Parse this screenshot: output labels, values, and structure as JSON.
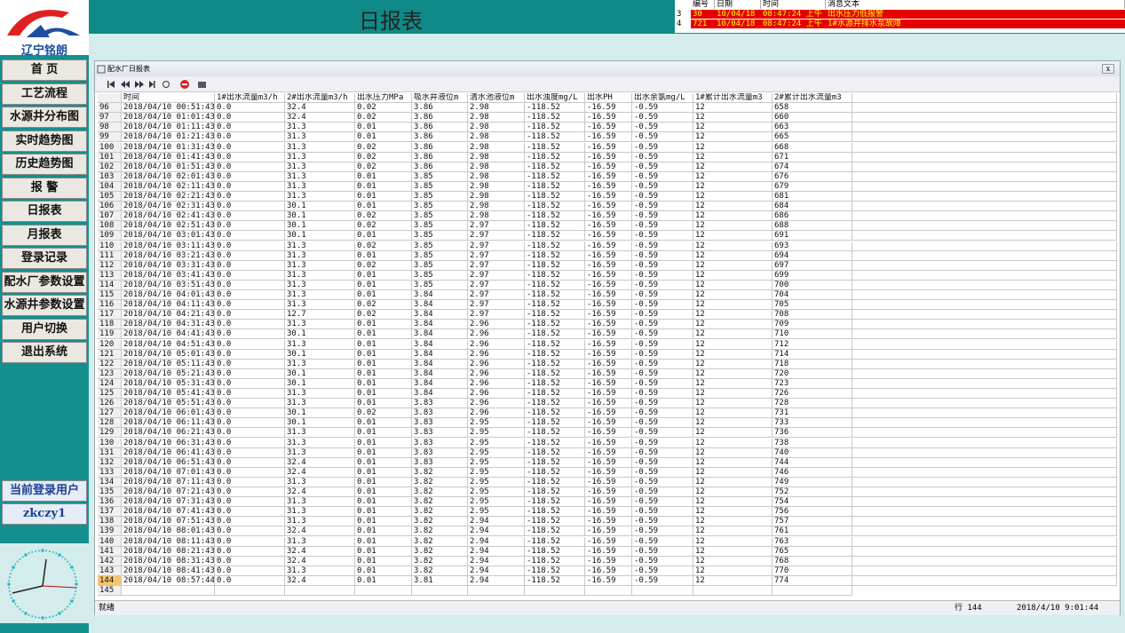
{
  "header": {
    "logo": "辽宁铭朗",
    "title": "日报表"
  },
  "alarms": {
    "columns": [
      "编号",
      "日期",
      "时间",
      "消息文本"
    ],
    "rows": [
      [
        "3",
        "30",
        "10/04/18",
        "08:47:24 上午",
        "出水压力低报警"
      ],
      [
        "4",
        "721",
        "10/04/18",
        "08:47:24 上午",
        "1#水源井排水泵故障"
      ]
    ]
  },
  "menu": [
    "首 页",
    "工艺流程",
    "水源井分布图",
    "实时趋势图",
    "历史趋势图",
    "报 警",
    "日报表",
    "月报表",
    "登录记录",
    "配水厂参数设置",
    "水源井参数设置",
    "用户切换",
    "退出系统"
  ],
  "user": {
    "label": "当前登录用户",
    "name": "zkczy1"
  },
  "window": {
    "title": "配水厂日报表",
    "table": {
      "columns": [
        "时间",
        "1#出水流量m3/h",
        "2#出水流量m3/h",
        "出水压力MPa",
        "吸水井液位m",
        "清水池液位m",
        "出水浊度mg/L",
        "出水PH",
        "出水余氯mg/L",
        "1#累计出水流量m3",
        "2#累计出水流量m3"
      ],
      "rows": [
        [
          "96",
          "2018/04/10 00:51:43",
          "0.0",
          "32.4",
          "0.02",
          "3.86",
          "2.98",
          "-118.52",
          "-16.59",
          "-0.59",
          "12",
          "658"
        ],
        [
          "97",
          "2018/04/10 01:01:43",
          "0.0",
          "32.4",
          "0.02",
          "3.86",
          "2.98",
          "-118.52",
          "-16.59",
          "-0.59",
          "12",
          "660"
        ],
        [
          "98",
          "2018/04/10 01:11:43",
          "0.0",
          "31.3",
          "0.01",
          "3.86",
          "2.98",
          "-118.52",
          "-16.59",
          "-0.59",
          "12",
          "663"
        ],
        [
          "99",
          "2018/04/10 01:21:43",
          "0.0",
          "31.3",
          "0.01",
          "3.86",
          "2.98",
          "-118.52",
          "-16.59",
          "-0.59",
          "12",
          "665"
        ],
        [
          "100",
          "2018/04/10 01:31:43",
          "0.0",
          "31.3",
          "0.02",
          "3.86",
          "2.98",
          "-118.52",
          "-16.59",
          "-0.59",
          "12",
          "668"
        ],
        [
          "101",
          "2018/04/10 01:41:43",
          "0.0",
          "31.3",
          "0.02",
          "3.86",
          "2.98",
          "-118.52",
          "-16.59",
          "-0.59",
          "12",
          "671"
        ],
        [
          "102",
          "2018/04/10 01:51:43",
          "0.0",
          "31.3",
          "0.02",
          "3.86",
          "2.98",
          "-118.52",
          "-16.59",
          "-0.59",
          "12",
          "674"
        ],
        [
          "103",
          "2018/04/10 02:01:43",
          "0.0",
          "31.3",
          "0.01",
          "3.85",
          "2.98",
          "-118.52",
          "-16.59",
          "-0.59",
          "12",
          "676"
        ],
        [
          "104",
          "2018/04/10 02:11:43",
          "0.0",
          "31.3",
          "0.01",
          "3.85",
          "2.98",
          "-118.52",
          "-16.59",
          "-0.59",
          "12",
          "679"
        ],
        [
          "105",
          "2018/04/10 02:21:43",
          "0.0",
          "31.3",
          "0.01",
          "3.85",
          "2.98",
          "-118.52",
          "-16.59",
          "-0.59",
          "12",
          "681"
        ],
        [
          "106",
          "2018/04/10 02:31:43",
          "0.0",
          "30.1",
          "0.01",
          "3.85",
          "2.98",
          "-118.52",
          "-16.59",
          "-0.59",
          "12",
          "684"
        ],
        [
          "107",
          "2018/04/10 02:41:43",
          "0.0",
          "30.1",
          "0.02",
          "3.85",
          "2.98",
          "-118.52",
          "-16.59",
          "-0.59",
          "12",
          "686"
        ],
        [
          "108",
          "2018/04/10 02:51:43",
          "0.0",
          "30.1",
          "0.02",
          "3.85",
          "2.97",
          "-118.52",
          "-16.59",
          "-0.59",
          "12",
          "688"
        ],
        [
          "109",
          "2018/04/10 03:01:43",
          "0.0",
          "30.1",
          "0.01",
          "3.85",
          "2.97",
          "-118.52",
          "-16.59",
          "-0.59",
          "12",
          "691"
        ],
        [
          "110",
          "2018/04/10 03:11:43",
          "0.0",
          "31.3",
          "0.02",
          "3.85",
          "2.97",
          "-118.52",
          "-16.59",
          "-0.59",
          "12",
          "693"
        ],
        [
          "111",
          "2018/04/10 03:21:43",
          "0.0",
          "31.3",
          "0.01",
          "3.85",
          "2.97",
          "-118.52",
          "-16.59",
          "-0.59",
          "12",
          "694"
        ],
        [
          "112",
          "2018/04/10 03:31:43",
          "0.0",
          "31.3",
          "0.02",
          "3.85",
          "2.97",
          "-118.52",
          "-16.59",
          "-0.59",
          "12",
          "697"
        ],
        [
          "113",
          "2018/04/10 03:41:43",
          "0.0",
          "31.3",
          "0.01",
          "3.85",
          "2.97",
          "-118.52",
          "-16.59",
          "-0.59",
          "12",
          "699"
        ],
        [
          "114",
          "2018/04/10 03:51:43",
          "0.0",
          "31.3",
          "0.01",
          "3.85",
          "2.97",
          "-118.52",
          "-16.59",
          "-0.59",
          "12",
          "700"
        ],
        [
          "115",
          "2018/04/10 04:01:43",
          "0.0",
          "31.3",
          "0.01",
          "3.84",
          "2.97",
          "-118.52",
          "-16.59",
          "-0.59",
          "12",
          "704"
        ],
        [
          "116",
          "2018/04/10 04:11:43",
          "0.0",
          "31.3",
          "0.02",
          "3.84",
          "2.97",
          "-118.52",
          "-16.59",
          "-0.59",
          "12",
          "705"
        ],
        [
          "117",
          "2018/04/10 04:21:43",
          "0.0",
          "12.7",
          "0.02",
          "3.84",
          "2.97",
          "-118.52",
          "-16.59",
          "-0.59",
          "12",
          "708"
        ],
        [
          "118",
          "2018/04/10 04:31:43",
          "0.0",
          "31.3",
          "0.01",
          "3.84",
          "2.96",
          "-118.52",
          "-16.59",
          "-0.59",
          "12",
          "709"
        ],
        [
          "119",
          "2018/04/10 04:41:43",
          "0.0",
          "30.1",
          "0.01",
          "3.84",
          "2.96",
          "-118.52",
          "-16.59",
          "-0.59",
          "12",
          "710"
        ],
        [
          "120",
          "2018/04/10 04:51:43",
          "0.0",
          "31.3",
          "0.01",
          "3.84",
          "2.96",
          "-118.52",
          "-16.59",
          "-0.59",
          "12",
          "712"
        ],
        [
          "121",
          "2018/04/10 05:01:43",
          "0.0",
          "30.1",
          "0.01",
          "3.84",
          "2.96",
          "-118.52",
          "-16.59",
          "-0.59",
          "12",
          "714"
        ],
        [
          "122",
          "2018/04/10 05:11:43",
          "0.0",
          "31.3",
          "0.01",
          "3.84",
          "2.96",
          "-118.52",
          "-16.59",
          "-0.59",
          "12",
          "718"
        ],
        [
          "123",
          "2018/04/10 05:21:43",
          "0.0",
          "30.1",
          "0.01",
          "3.84",
          "2.96",
          "-118.52",
          "-16.59",
          "-0.59",
          "12",
          "720"
        ],
        [
          "124",
          "2018/04/10 05:31:43",
          "0.0",
          "30.1",
          "0.01",
          "3.84",
          "2.96",
          "-118.52",
          "-16.59",
          "-0.59",
          "12",
          "723"
        ],
        [
          "125",
          "2018/04/10 05:41:43",
          "0.0",
          "31.3",
          "0.01",
          "3.84",
          "2.96",
          "-118.52",
          "-16.59",
          "-0.59",
          "12",
          "726"
        ],
        [
          "126",
          "2018/04/10 05:51:43",
          "0.0",
          "31.3",
          "0.01",
          "3.83",
          "2.96",
          "-118.52",
          "-16.59",
          "-0.59",
          "12",
          "728"
        ],
        [
          "127",
          "2018/04/10 06:01:43",
          "0.0",
          "30.1",
          "0.02",
          "3.83",
          "2.96",
          "-118.52",
          "-16.59",
          "-0.59",
          "12",
          "731"
        ],
        [
          "128",
          "2018/04/10 06:11:43",
          "0.0",
          "30.1",
          "0.01",
          "3.83",
          "2.95",
          "-118.52",
          "-16.59",
          "-0.59",
          "12",
          "733"
        ],
        [
          "129",
          "2018/04/10 06:21:43",
          "0.0",
          "31.3",
          "0.01",
          "3.83",
          "2.95",
          "-118.52",
          "-16.59",
          "-0.59",
          "12",
          "736"
        ],
        [
          "130",
          "2018/04/10 06:31:43",
          "0.0",
          "31.3",
          "0.01",
          "3.83",
          "2.95",
          "-118.52",
          "-16.59",
          "-0.59",
          "12",
          "738"
        ],
        [
          "131",
          "2018/04/10 06:41:43",
          "0.0",
          "31.3",
          "0.01",
          "3.83",
          "2.95",
          "-118.52",
          "-16.59",
          "-0.59",
          "12",
          "740"
        ],
        [
          "132",
          "2018/04/10 06:51:43",
          "0.0",
          "32.4",
          "0.01",
          "3.83",
          "2.95",
          "-118.52",
          "-16.59",
          "-0.59",
          "12",
          "744"
        ],
        [
          "133",
          "2018/04/10 07:01:43",
          "0.0",
          "32.4",
          "0.01",
          "3.82",
          "2.95",
          "-118.52",
          "-16.59",
          "-0.59",
          "12",
          "746"
        ],
        [
          "134",
          "2018/04/10 07:11:43",
          "0.0",
          "31.3",
          "0.01",
          "3.82",
          "2.95",
          "-118.52",
          "-16.59",
          "-0.59",
          "12",
          "749"
        ],
        [
          "135",
          "2018/04/10 07:21:43",
          "0.0",
          "32.4",
          "0.01",
          "3.82",
          "2.95",
          "-118.52",
          "-16.59",
          "-0.59",
          "12",
          "752"
        ],
        [
          "136",
          "2018/04/10 07:31:43",
          "0.0",
          "31.3",
          "0.01",
          "3.82",
          "2.95",
          "-118.52",
          "-16.59",
          "-0.59",
          "12",
          "754"
        ],
        [
          "137",
          "2018/04/10 07:41:43",
          "0.0",
          "31.3",
          "0.01",
          "3.82",
          "2.95",
          "-118.52",
          "-16.59",
          "-0.59",
          "12",
          "756"
        ],
        [
          "138",
          "2018/04/10 07:51:43",
          "0.0",
          "31.3",
          "0.01",
          "3.82",
          "2.94",
          "-118.52",
          "-16.59",
          "-0.59",
          "12",
          "757"
        ],
        [
          "139",
          "2018/04/10 08:01:43",
          "0.0",
          "32.4",
          "0.01",
          "3.82",
          "2.94",
          "-118.52",
          "-16.59",
          "-0.59",
          "12",
          "761"
        ],
        [
          "140",
          "2018/04/10 08:11:43",
          "0.0",
          "31.3",
          "0.01",
          "3.82",
          "2.94",
          "-118.52",
          "-16.59",
          "-0.59",
          "12",
          "763"
        ],
        [
          "141",
          "2018/04/10 08:21:43",
          "0.0",
          "32.4",
          "0.01",
          "3.82",
          "2.94",
          "-118.52",
          "-16.59",
          "-0.59",
          "12",
          "765"
        ],
        [
          "142",
          "2018/04/10 08:31:43",
          "0.0",
          "32.4",
          "0.01",
          "3.82",
          "2.94",
          "-118.52",
          "-16.59",
          "-0.59",
          "12",
          "768"
        ],
        [
          "143",
          "2018/04/10 08:41:43",
          "0.0",
          "31.3",
          "0.01",
          "3.82",
          "2.94",
          "-118.52",
          "-16.59",
          "-0.59",
          "12",
          "770"
        ],
        [
          "144",
          "2018/04/10 08:57:44",
          "0.0",
          "32.4",
          "0.01",
          "3.81",
          "2.94",
          "-118.52",
          "-16.59",
          "-0.59",
          "12",
          "774"
        ]
      ],
      "last_row": "145"
    },
    "status": {
      "text": "就绪",
      "row": "行 144",
      "time": "2018/4/10 9:01:44"
    }
  }
}
